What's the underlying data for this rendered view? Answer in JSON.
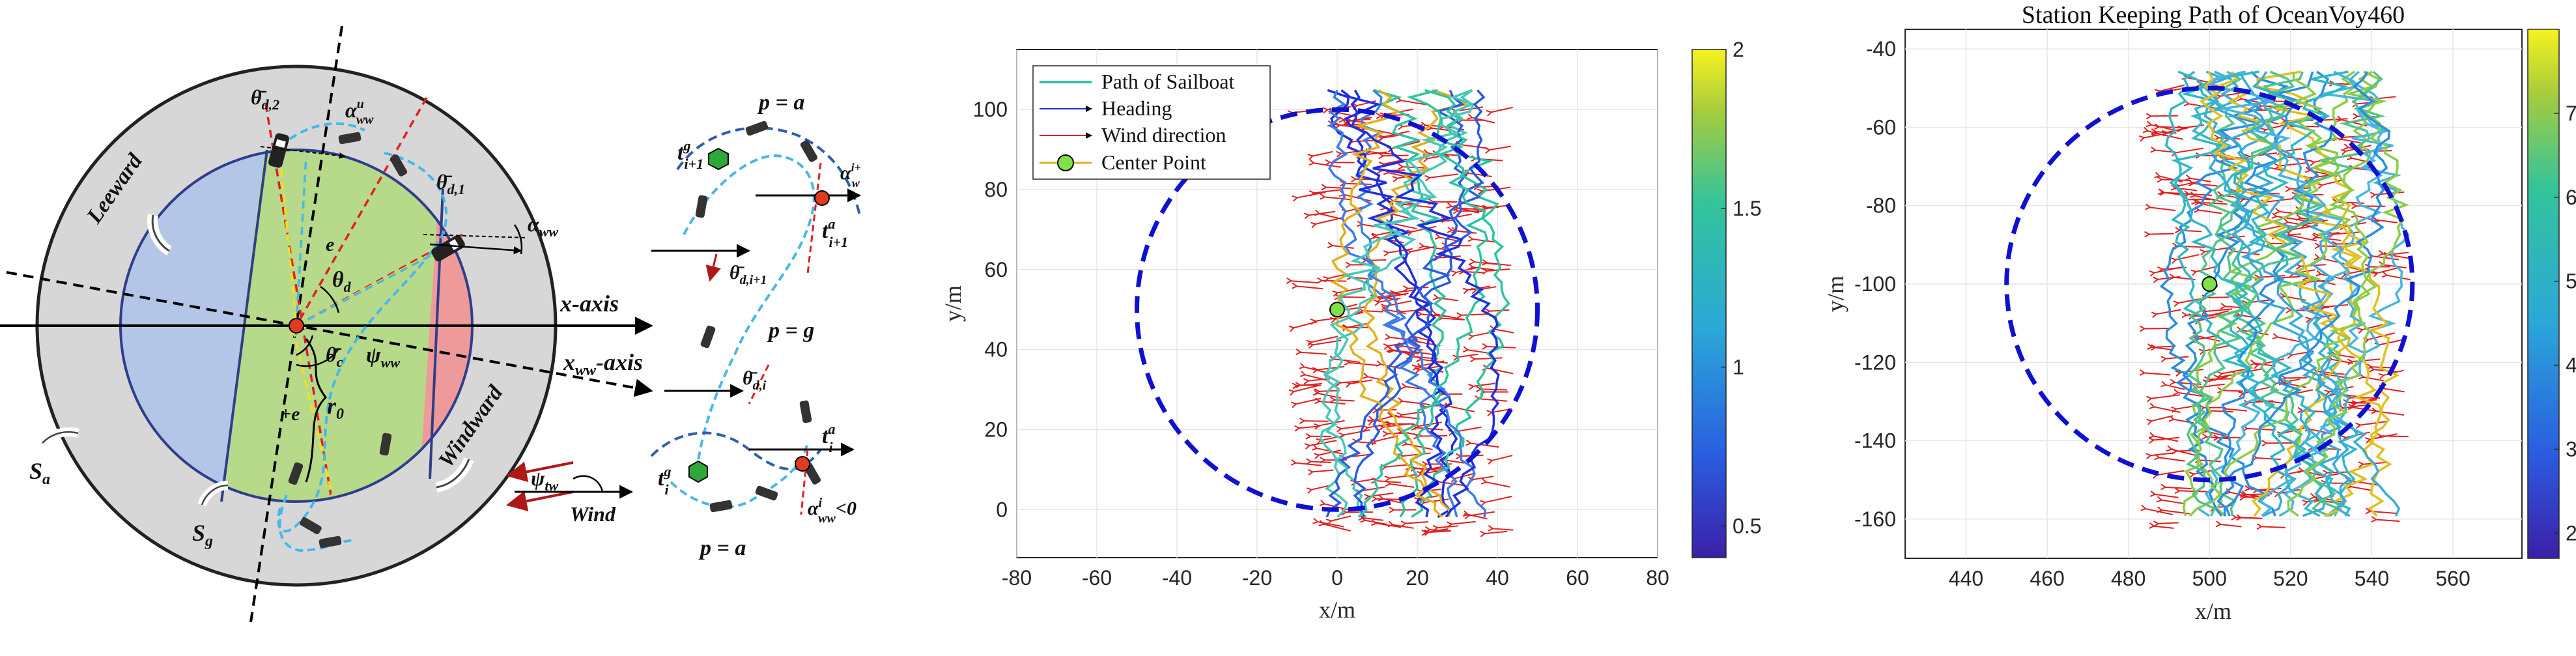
{
  "diagram": {
    "regions": {
      "leeward": "Leeward",
      "windward": "Windward"
    },
    "labels": {
      "x_axis": "x-axis",
      "x_ww_axis": "x",
      "x_ww_sub": "ww",
      "x_ww_suffix": "-axis",
      "S_a": "S",
      "S_a_sub": "a",
      "S_g": "S",
      "S_g_sub": "g",
      "r0": "r",
      "r0_sub": "0",
      "plus_e": "+e",
      "e": "e",
      "theta_d": "θ",
      "theta_d_sub": "d",
      "theta_bar_d2": "θ̄",
      "theta_bar_d2_sub": "d,2",
      "theta_bar_d1": "θ̄",
      "theta_bar_d1_sub": "d,1",
      "theta_bar_c": "θ̄",
      "theta_bar_c_sub": "c",
      "psi_ww": "ψ",
      "psi_ww_sub": "ww",
      "alpha_ww": "α",
      "alpha_ww_sub": "ww",
      "alpha_ww_u": "α",
      "alpha_ww_u_sub": "ww",
      "alpha_ww_u_sup": "u",
      "psi_tw": "ψ",
      "psi_tw_sub": "tw",
      "wind": "Wind"
    },
    "inset": {
      "p_a_top": "p = a",
      "p_g": "p = g",
      "p_a_bottom": "p = a",
      "t_g_next": "t",
      "t_g_next_sup": "g",
      "t_g_next_sub": "i+1",
      "t_a_next": "t",
      "t_a_next_sup": "a",
      "t_a_next_sub": "i+1",
      "theta_bar_next": "θ̄",
      "theta_bar_next_sub": "d,i+1",
      "theta_bar_i": "θ̄",
      "theta_bar_i_sub": "d,i",
      "t_g_i": "t",
      "t_g_i_sup": "g",
      "t_g_i_sub": "i",
      "t_a_i": "t",
      "t_a_i_sup": "a",
      "t_a_i_sub": "i",
      "alpha_top": "α",
      "alpha_top_sup": "i+",
      "alpha_top_sub": "w",
      "alpha_i": "α",
      "alpha_i_sup": "i",
      "alpha_i_sub": "ww",
      "alpha_i_cond": "<0"
    }
  },
  "chart_data": [
    {
      "type": "line",
      "title": "",
      "xlabel": "x/m",
      "ylabel": "y/m",
      "xlim": [
        -80,
        80
      ],
      "ylim": [
        -12,
        115
      ],
      "xticks": [
        "-80",
        "-60",
        "-40",
        "-20",
        "0",
        "20",
        "40",
        "60",
        "80"
      ],
      "yticks": [
        "0",
        "20",
        "40",
        "60",
        "80",
        "100"
      ],
      "grid": true,
      "legend_position": "top-left",
      "legend": [
        "Path of Sailboat",
        "Heading",
        "Wind direction",
        "Center Point"
      ],
      "circle": {
        "center": [
          0,
          50
        ],
        "radius": 50
      },
      "center_point": [
        0,
        50
      ],
      "path_x_range": [
        -5,
        45
      ],
      "colorbar": {
        "ticks": [
          "0.5",
          "1",
          "1.5",
          "2"
        ],
        "range": [
          0.4,
          2
        ]
      },
      "colors": {
        "path": "#2ec4a0",
        "heading": "#1f2fe0",
        "wind": "#e02020",
        "center": "#7fe04a",
        "circle": "#1010d0"
      }
    },
    {
      "type": "line",
      "title": "Station Keeping Path of OceanVoy460",
      "xlabel": "x/m",
      "ylabel": "y/m",
      "xlim": [
        425,
        577
      ],
      "ylim": [
        -170,
        -35
      ],
      "xticks": [
        "440",
        "460",
        "480",
        "500",
        "520",
        "540",
        "560"
      ],
      "yticks": [
        "-40",
        "-60",
        "-80",
        "-100",
        "-120",
        "-140",
        "-160"
      ],
      "grid": true,
      "circle": {
        "center": [
          500,
          -100
        ],
        "radius": 50
      },
      "center_point": [
        500,
        -100
      ],
      "path_x_range": [
        490,
        550
      ],
      "colorbar": {
        "ticks": [
          "2",
          "3",
          "4",
          "5",
          "6",
          "7"
        ],
        "range": [
          1.7,
          8
        ]
      },
      "colors": {
        "path": "#3aaad8",
        "wind": "#e02020",
        "center": "#7fe04a",
        "circle": "#1010d0"
      }
    }
  ]
}
